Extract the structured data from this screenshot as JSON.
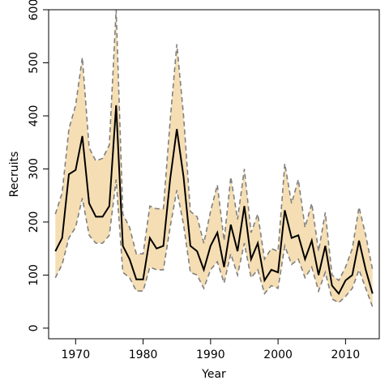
{
  "chart_data": {
    "type": "line",
    "title": "",
    "xlabel": "Year",
    "ylabel": "Recruits",
    "xlim": [
      1966,
      2015
    ],
    "ylim": [
      -20,
      600
    ],
    "xticks": [
      1970,
      1980,
      1990,
      2000,
      2010
    ],
    "yticks": [
      0,
      100,
      200,
      300,
      400,
      500,
      600
    ],
    "grid": false,
    "legend": "none",
    "colors": {
      "band": "#f5deb3",
      "median": "#000000",
      "bounds": "#808080"
    },
    "x": [
      1967,
      1968,
      1969,
      1970,
      1971,
      1972,
      1973,
      1974,
      1975,
      1976,
      1977,
      1978,
      1979,
      1980,
      1981,
      1982,
      1983,
      1984,
      1985,
      1986,
      1987,
      1988,
      1989,
      1990,
      1991,
      1992,
      1993,
      1994,
      1995,
      1996,
      1997,
      1998,
      1999,
      2000,
      2001,
      2002,
      2003,
      2004,
      2005,
      2006,
      2007,
      2008,
      2009,
      2010,
      2011,
      2012,
      2013,
      2014
    ],
    "series": [
      {
        "role": "median",
        "values": [
          145,
          170,
          290,
          298,
          362,
          235,
          210,
          210,
          230,
          420,
          155,
          130,
          92,
          92,
          170,
          150,
          155,
          280,
          375,
          285,
          155,
          145,
          110,
          155,
          180,
          115,
          195,
          145,
          230,
          130,
          160,
          90,
          110,
          105,
          222,
          170,
          175,
          130,
          165,
          100,
          155,
          80,
          65,
          90,
          100,
          165,
          110,
          65
        ]
      },
      {
        "role": "upper",
        "values": [
          215,
          255,
          375,
          420,
          510,
          340,
          315,
          320,
          345,
          600,
          215,
          190,
          140,
          140,
          230,
          225,
          225,
          390,
          535,
          400,
          220,
          210,
          160,
          220,
          270,
          165,
          285,
          205,
          300,
          180,
          215,
          130,
          150,
          145,
          310,
          235,
          280,
          190,
          235,
          145,
          218,
          100,
          90,
          115,
          150,
          228,
          175,
          110
        ]
      },
      {
        "role": "lower",
        "values": [
          95,
          120,
          170,
          190,
          245,
          175,
          160,
          160,
          175,
          280,
          105,
          95,
          70,
          70,
          115,
          110,
          110,
          190,
          260,
          195,
          105,
          100,
          75,
          110,
          125,
          85,
          140,
          100,
          160,
          95,
          110,
          65,
          80,
          75,
          155,
          120,
          130,
          95,
          115,
          70,
          105,
          55,
          48,
          60,
          75,
          110,
          75,
          40
        ]
      }
    ]
  }
}
